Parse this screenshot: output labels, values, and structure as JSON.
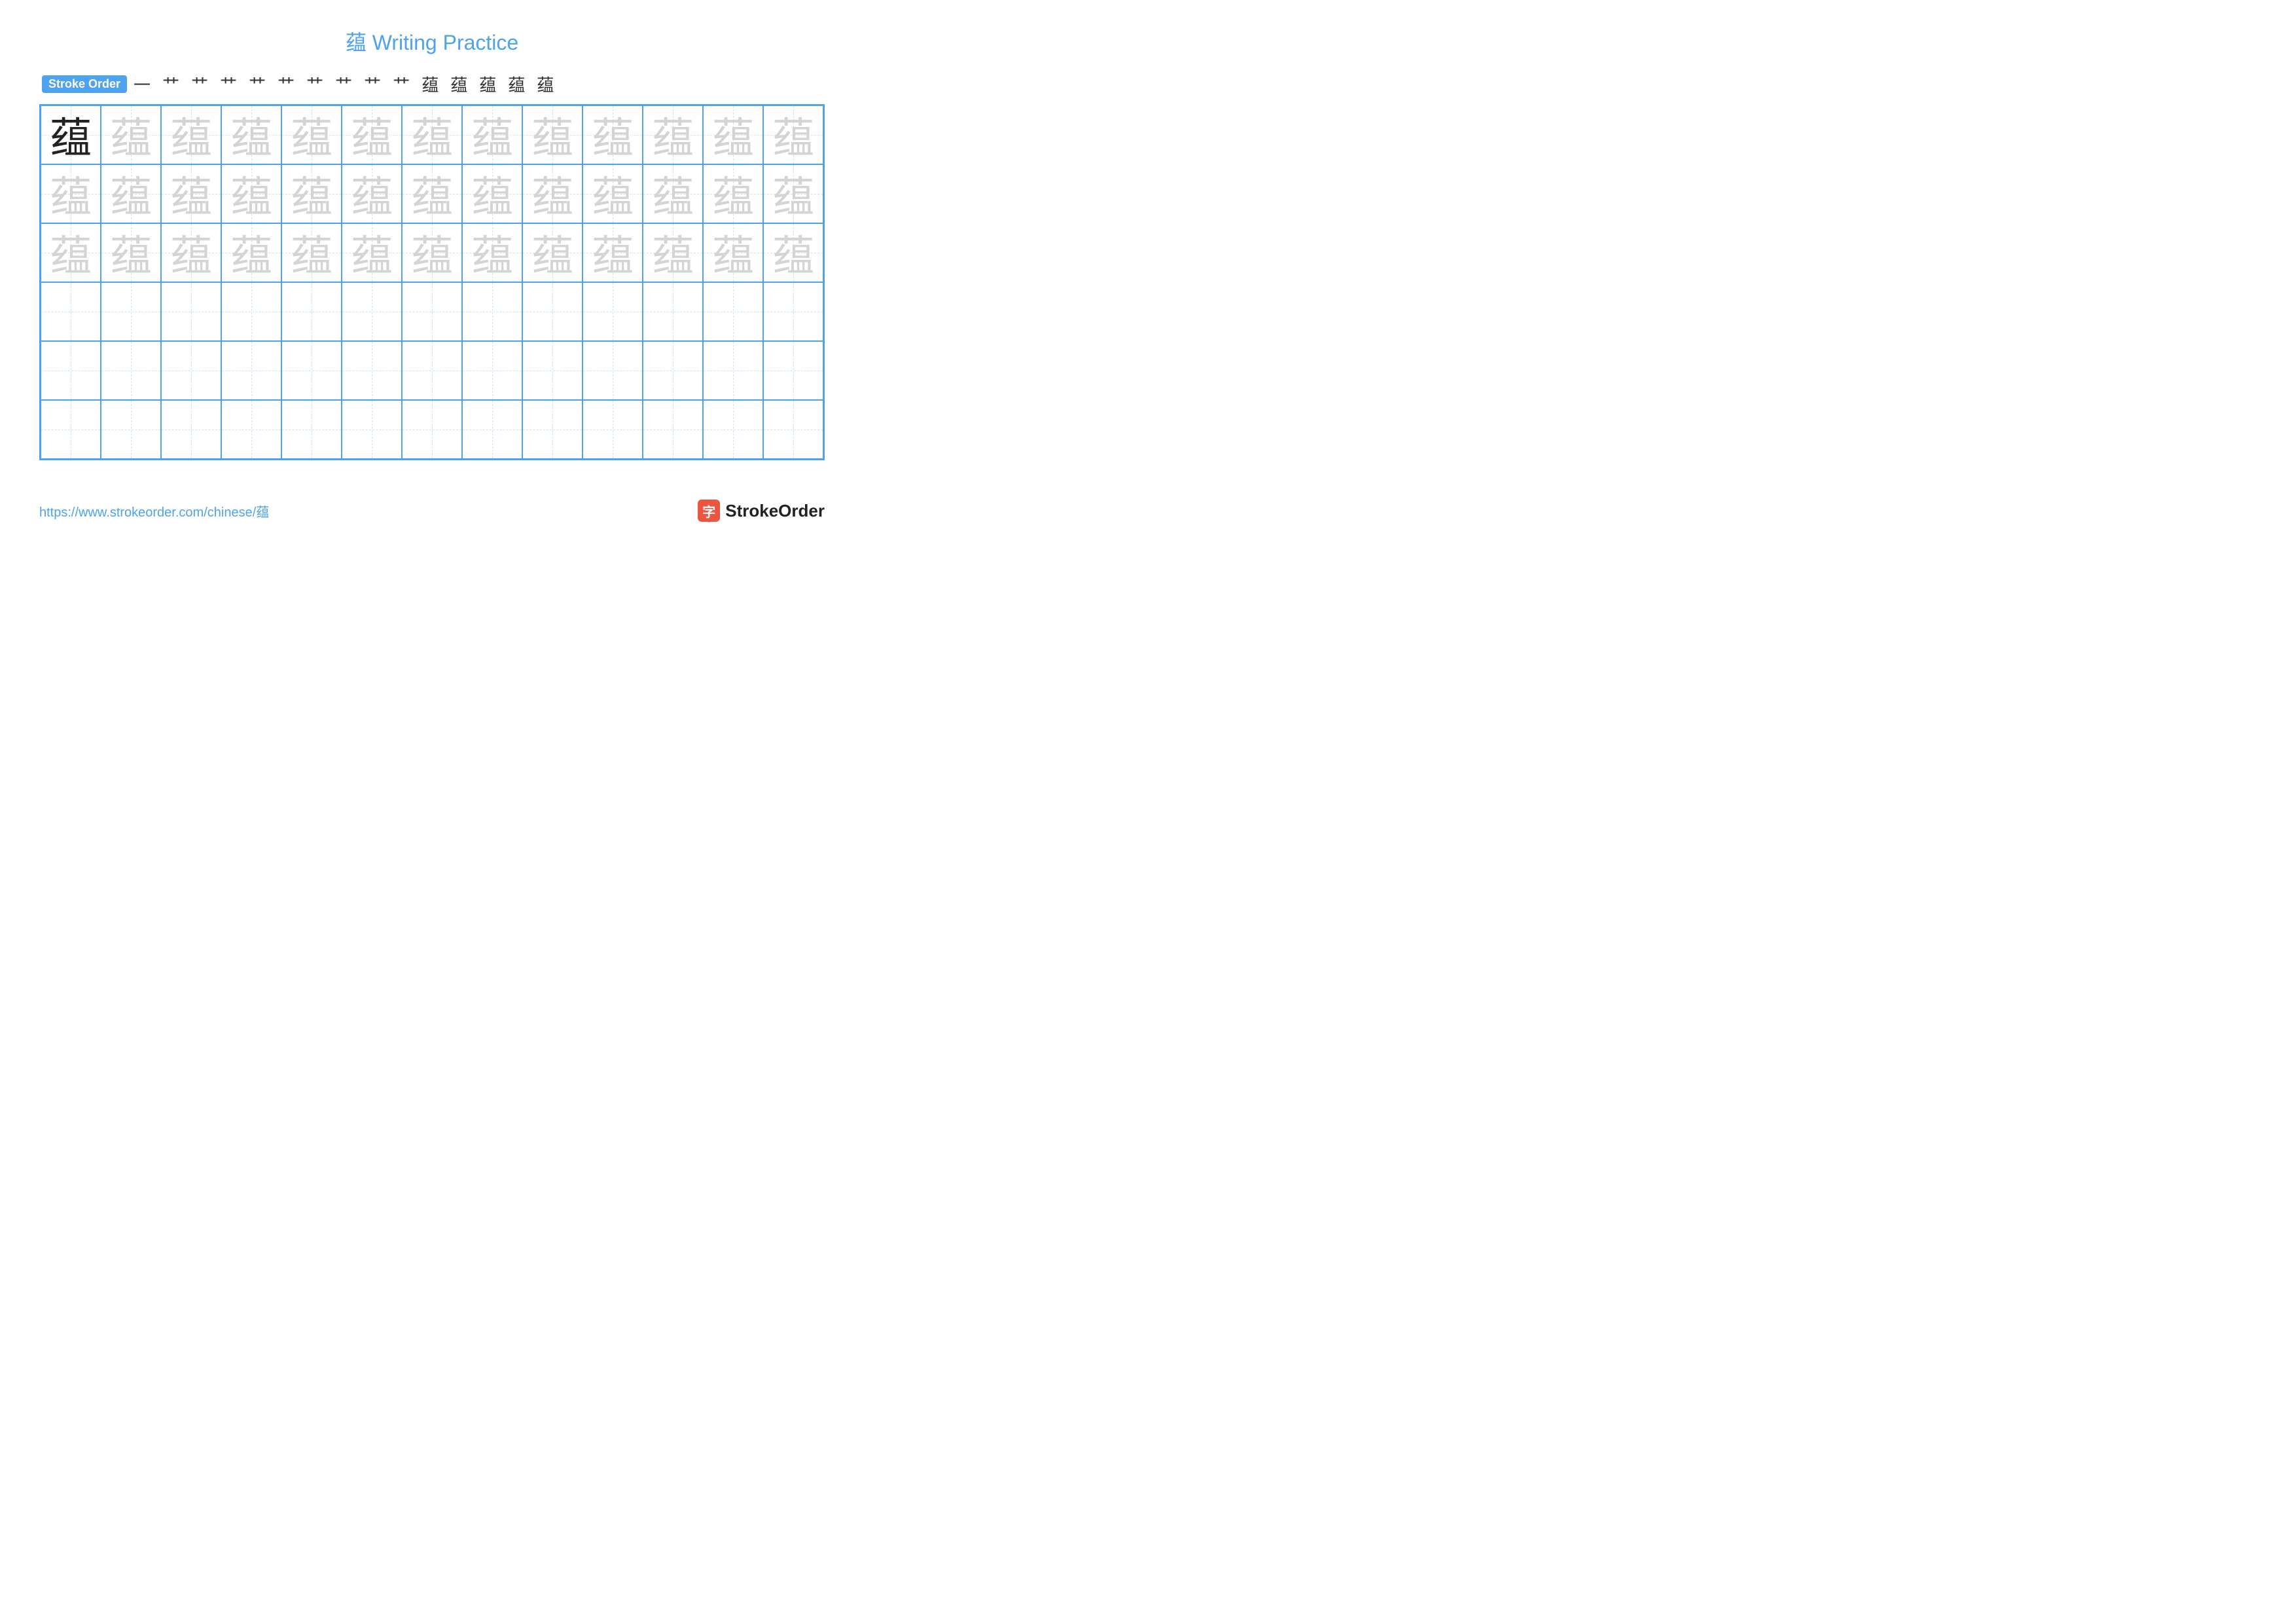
{
  "colors": {
    "accent": "#4da3ef",
    "grid_border": "#4da3ef",
    "dash": "#9cc8f2",
    "model_char": "#222222",
    "trace_char": "#d4d4d4",
    "stroke_char": "#333333",
    "logo_bg": "#ed5540",
    "logo_text": "#222222",
    "url": "#4da3ef"
  },
  "title": {
    "char": "蕴",
    "text": " Writing Practice"
  },
  "stroke_order": {
    "label": "Stroke Order",
    "steps": [
      "一",
      "艹",
      "艹",
      "艹",
      "艹",
      "艹",
      "艹",
      "艹",
      "艹",
      "艹",
      "蕴",
      "蕴",
      "蕴",
      "蕴",
      "蕴"
    ]
  },
  "practice": {
    "character": "蕴",
    "cols": 13,
    "rows": 6,
    "trace_rows": 3,
    "font_family": "KaiTi, STKaiti, serif",
    "char_fontsize": 64
  },
  "footer": {
    "url": "https://www.strokeorder.com/chinese/蕴",
    "brand_icon": "字",
    "brand": "StrokeOrder"
  }
}
